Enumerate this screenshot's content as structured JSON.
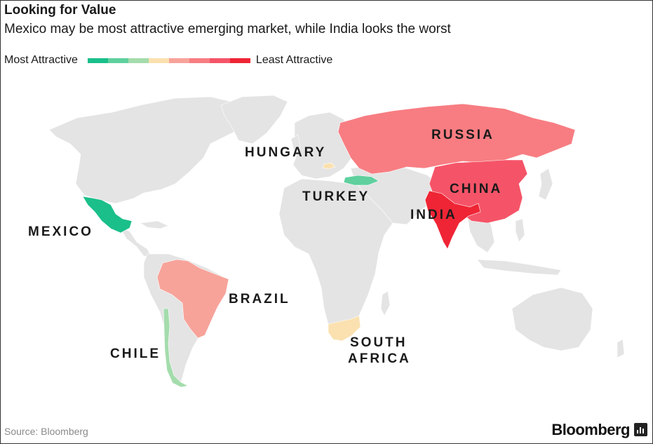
{
  "title": "Looking for Value",
  "subtitle": "Mexico may be most attractive emerging market, while India looks the worst",
  "legend": {
    "low_label": "Most Attractive",
    "high_label": "Least Attractive",
    "colors": [
      "#1abf8a",
      "#5fd09e",
      "#a4dcac",
      "#fbe1b0",
      "#f7a39a",
      "#f77d82",
      "#f55468",
      "#ef2535"
    ]
  },
  "countries": [
    {
      "name": "MEXICO",
      "color": "#1abf8a"
    },
    {
      "name": "CHILE",
      "color": "#a4dcac"
    },
    {
      "name": "TURKEY",
      "color": "#5fd09e"
    },
    {
      "name": "HUNGARY",
      "color": "#fbe1b0"
    },
    {
      "name": "SOUTH AFRICA",
      "color": "#fbe1b0"
    },
    {
      "name": "BRAZIL",
      "color": "#f7a39a"
    },
    {
      "name": "RUSSIA",
      "color": "#f77d82"
    },
    {
      "name": "CHINA",
      "color": "#f55468"
    },
    {
      "name": "INDIA",
      "color": "#ef2535"
    }
  ],
  "labels": {
    "mexico": "MEXICO",
    "chile": "CHILE",
    "brazil": "BRAZIL",
    "hungary": "HUNGARY",
    "turkey": "TURKEY",
    "russia": "RUSSIA",
    "china": "CHINA",
    "india": "INDIA",
    "south_africa_1": "SOUTH",
    "south_africa_2": "AFRICA"
  },
  "land_color": "#e4e4e4",
  "source": "Source: Bloomberg",
  "brand": "Bloomberg"
}
